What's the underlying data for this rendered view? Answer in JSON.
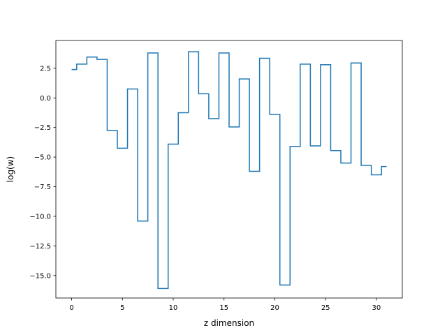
{
  "chart_data": {
    "type": "line",
    "drawstyle": "steps-mid",
    "xlabel": "z dimension",
    "ylabel": "log(w)",
    "xlim": [
      -1.55,
      32.55
    ],
    "ylim": [
      -16.9,
      4.85
    ],
    "xticks": [
      0,
      5,
      10,
      15,
      20,
      25,
      30
    ],
    "xtick_labels": [
      "0",
      "5",
      "10",
      "15",
      "20",
      "25",
      "30"
    ],
    "yticks": [
      2.5,
      0.0,
      -2.5,
      -5.0,
      -7.5,
      -10.0,
      -12.5,
      -15.0
    ],
    "ytick_labels": [
      "2.5",
      "0.0",
      "−2.5",
      "−5.0",
      "−7.5",
      "−10.0",
      "−12.5",
      "−15.0"
    ],
    "grid": false,
    "series": [
      {
        "color": "#1f77b4",
        "x": [
          0,
          1,
          2,
          3,
          4,
          5,
          6,
          7,
          8,
          9,
          10,
          11,
          12,
          13,
          14,
          15,
          16,
          17,
          18,
          19,
          20,
          21,
          22,
          23,
          24,
          25,
          26,
          27,
          28,
          29,
          30,
          31
        ],
        "y": [
          2.4,
          2.85,
          3.45,
          3.25,
          -2.75,
          -4.25,
          0.75,
          -10.4,
          3.8,
          -16.1,
          -3.9,
          -1.25,
          3.9,
          0.35,
          -1.75,
          3.8,
          -2.45,
          1.6,
          -6.2,
          3.35,
          -1.4,
          -15.8,
          -4.1,
          2.85,
          -4.05,
          2.8,
          -4.45,
          -5.5,
          2.95,
          -5.7,
          -6.5,
          -5.8
        ]
      }
    ]
  }
}
